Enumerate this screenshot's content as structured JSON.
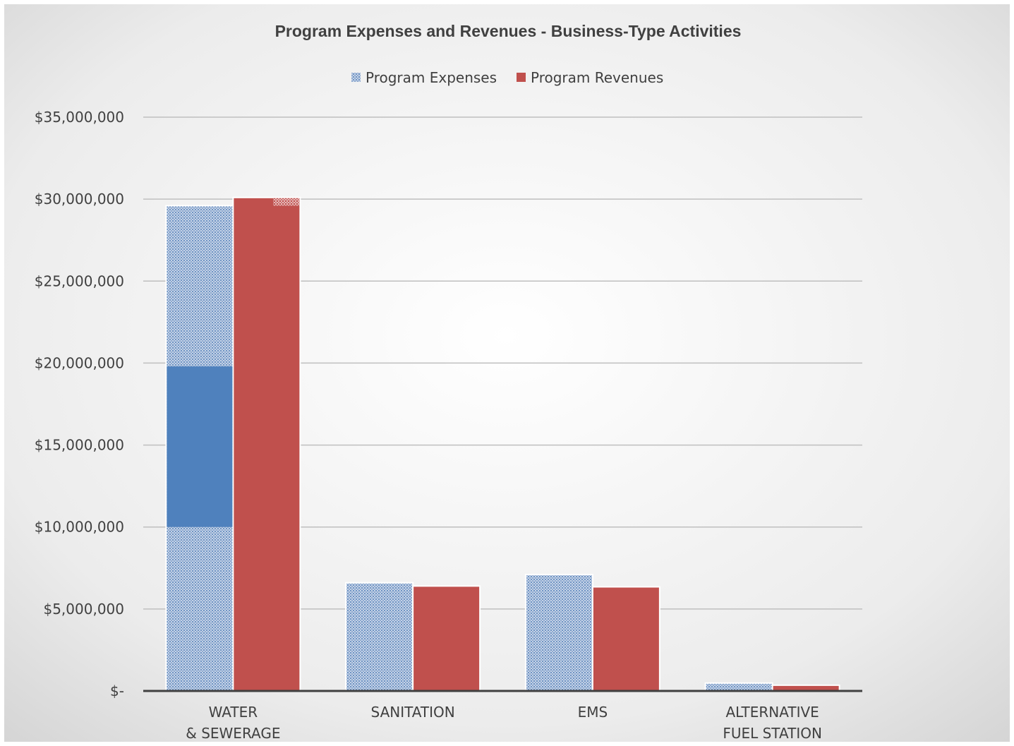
{
  "chart_data": {
    "type": "bar",
    "title": "Program Expenses and Revenues - Business-Type Activities",
    "legend_position": "top",
    "categories": [
      [
        "WATER",
        "& SEWERAGE"
      ],
      [
        "SANITATION"
      ],
      [
        "EMS"
      ],
      [
        "ALTERNATIVE",
        "FUEL STATION"
      ]
    ],
    "series": [
      {
        "name": "Program Expenses",
        "color": "#4f81bd",
        "pattern": "dotted",
        "values": [
          29600000,
          6600000,
          7100000,
          480000
        ]
      },
      {
        "name": "Program Revenues",
        "color": "#c0504d",
        "pattern": "solid",
        "values": [
          30100000,
          6400000,
          6350000,
          350000
        ]
      }
    ],
    "highlight_segment": {
      "category_index": 0,
      "series_index": 0,
      "from": 10000000,
      "to": 19800000,
      "color": "#4f81bd"
    },
    "ylim": [
      0,
      35000000
    ],
    "yticks": [
      {
        "value": 0,
        "label": "$-"
      },
      {
        "value": 5000000,
        "label": "$5,000,000"
      },
      {
        "value": 10000000,
        "label": "$10,000,000"
      },
      {
        "value": 15000000,
        "label": "$15,000,000"
      },
      {
        "value": 20000000,
        "label": "$20,000,000"
      },
      {
        "value": 25000000,
        "label": "$25,000,000"
      },
      {
        "value": 30000000,
        "label": "$30,000,000"
      },
      {
        "value": 35000000,
        "label": "$35,000,000"
      }
    ],
    "grid": true,
    "xlabel": "",
    "ylabel": ""
  }
}
